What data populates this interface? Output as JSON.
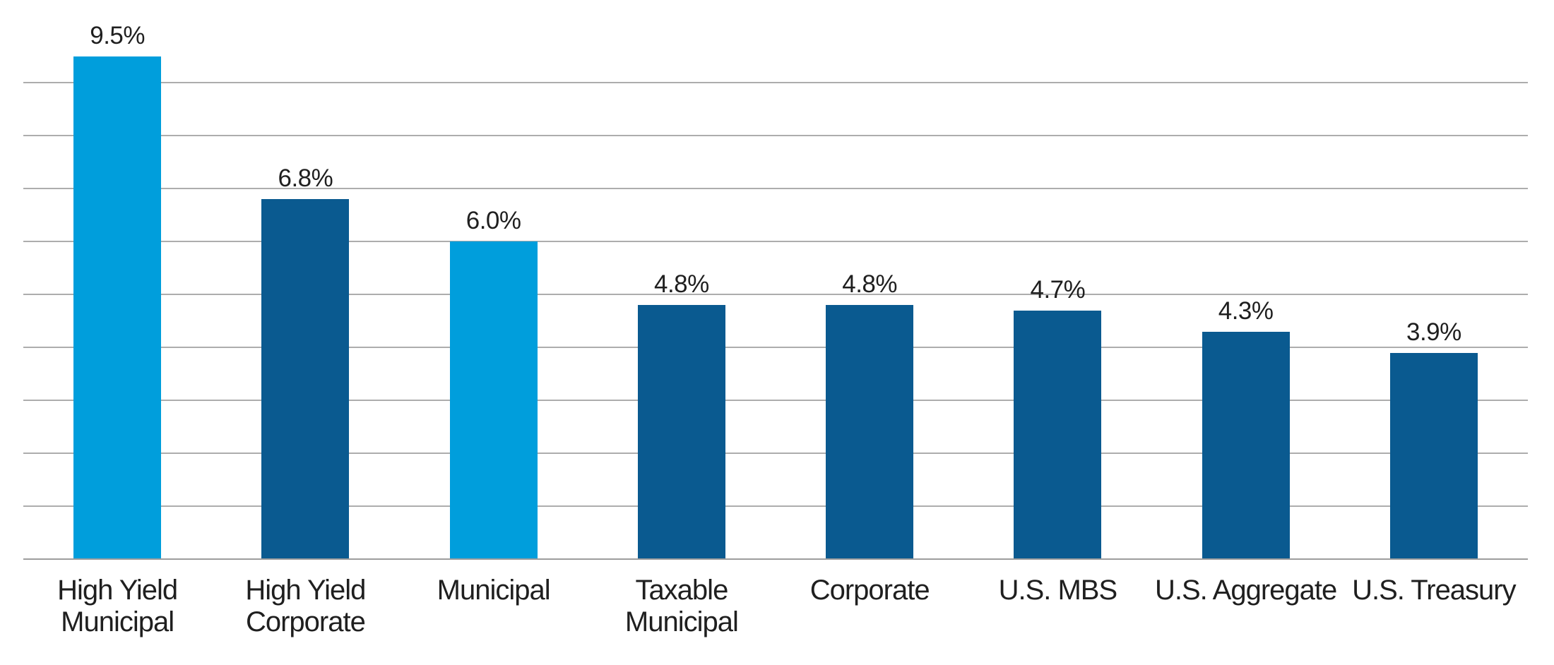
{
  "chart_data": {
    "type": "bar",
    "categories": [
      "High Yield\nMunicipal",
      "High Yield\nCorporate",
      "Municipal",
      "Taxable\nMunicipal",
      "Corporate",
      "U.S. MBS",
      "U.S. Aggregate",
      "U.S. Treasury"
    ],
    "values": [
      9.5,
      6.8,
      6.0,
      4.8,
      4.8,
      4.7,
      4.3,
      3.9
    ],
    "value_labels": [
      "9.5%",
      "6.8%",
      "6.0%",
      "4.8%",
      "4.8%",
      "4.7%",
      "4.3%",
      "3.9%"
    ],
    "bar_color_roles": [
      "light",
      "dark",
      "light",
      "dark",
      "dark",
      "dark",
      "dark",
      "dark"
    ],
    "title": "",
    "xlabel": "",
    "ylabel": "",
    "ylim": [
      0,
      10
    ],
    "gridlines": {
      "show": true,
      "interval": 1,
      "min": 1,
      "max": 9
    },
    "legend": "none"
  },
  "colors": {
    "light_blue": "#009EDC",
    "dark_blue": "#0A5A90",
    "gridline": "#ADADAD",
    "axis_line": "#9D9D9D",
    "label_text": "#1F1F1F",
    "background": "#FFFFFF"
  }
}
